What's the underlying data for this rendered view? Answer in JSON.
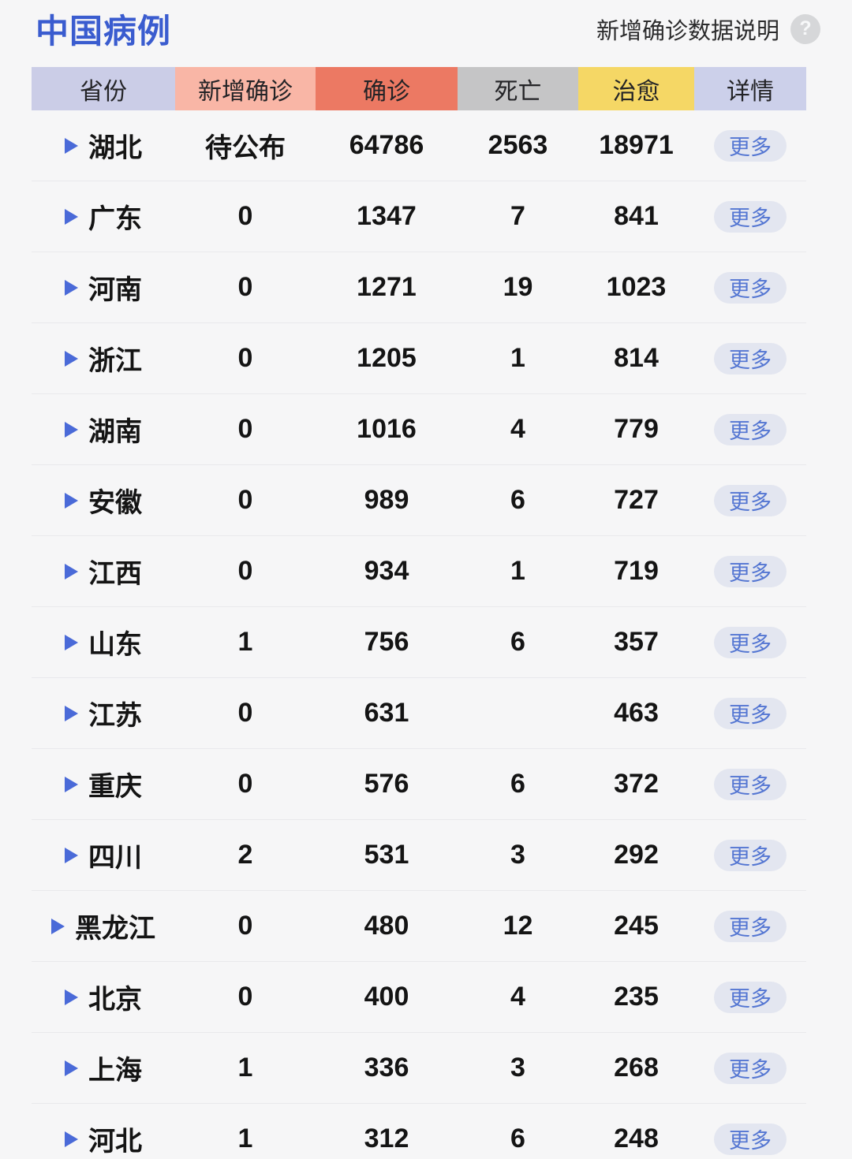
{
  "page": {
    "background": "#f6f6f7"
  },
  "header": {
    "title": "中国病例",
    "title_color": "#3a5ccf",
    "help_label": "新增确诊数据说明",
    "help_icon_glyph": "?"
  },
  "table": {
    "columns": [
      {
        "key": "province",
        "label": "省份",
        "bg": "#cbcde7"
      },
      {
        "key": "new_confirmed",
        "label": "新增确诊",
        "bg": "#f9b6a6"
      },
      {
        "key": "confirmed",
        "label": "确诊",
        "bg": "#ec7963"
      },
      {
        "key": "deaths",
        "label": "死亡",
        "bg": "#c5c5c6"
      },
      {
        "key": "cured",
        "label": "治愈",
        "bg": "#f5d765"
      },
      {
        "key": "detail",
        "label": "详情",
        "bg": "#ccd0ea"
      }
    ],
    "more_label": "更多",
    "accent_colors": {
      "row_arrow": "#4a6ad8",
      "more_text": "#5476d2",
      "more_bg": "#e3e6f0"
    },
    "rows": [
      {
        "province": "湖北",
        "new_confirmed": "待公布",
        "confirmed": "64786",
        "deaths": "2563",
        "cured": "18971"
      },
      {
        "province": "广东",
        "new_confirmed": "0",
        "confirmed": "1347",
        "deaths": "7",
        "cured": "841"
      },
      {
        "province": "河南",
        "new_confirmed": "0",
        "confirmed": "1271",
        "deaths": "19",
        "cured": "1023"
      },
      {
        "province": "浙江",
        "new_confirmed": "0",
        "confirmed": "1205",
        "deaths": "1",
        "cured": "814"
      },
      {
        "province": "湖南",
        "new_confirmed": "0",
        "confirmed": "1016",
        "deaths": "4",
        "cured": "779"
      },
      {
        "province": "安徽",
        "new_confirmed": "0",
        "confirmed": "989",
        "deaths": "6",
        "cured": "727"
      },
      {
        "province": "江西",
        "new_confirmed": "0",
        "confirmed": "934",
        "deaths": "1",
        "cured": "719"
      },
      {
        "province": "山东",
        "new_confirmed": "1",
        "confirmed": "756",
        "deaths": "6",
        "cured": "357"
      },
      {
        "province": "江苏",
        "new_confirmed": "0",
        "confirmed": "631",
        "deaths": "",
        "cured": "463"
      },
      {
        "province": "重庆",
        "new_confirmed": "0",
        "confirmed": "576",
        "deaths": "6",
        "cured": "372"
      },
      {
        "province": "四川",
        "new_confirmed": "2",
        "confirmed": "531",
        "deaths": "3",
        "cured": "292"
      },
      {
        "province": "黑龙江",
        "new_confirmed": "0",
        "confirmed": "480",
        "deaths": "12",
        "cured": "245"
      },
      {
        "province": "北京",
        "new_confirmed": "0",
        "confirmed": "400",
        "deaths": "4",
        "cured": "235"
      },
      {
        "province": "上海",
        "new_confirmed": "1",
        "confirmed": "336",
        "deaths": "3",
        "cured": "268"
      },
      {
        "province": "河北",
        "new_confirmed": "1",
        "confirmed": "312",
        "deaths": "6",
        "cured": "248"
      }
    ]
  }
}
